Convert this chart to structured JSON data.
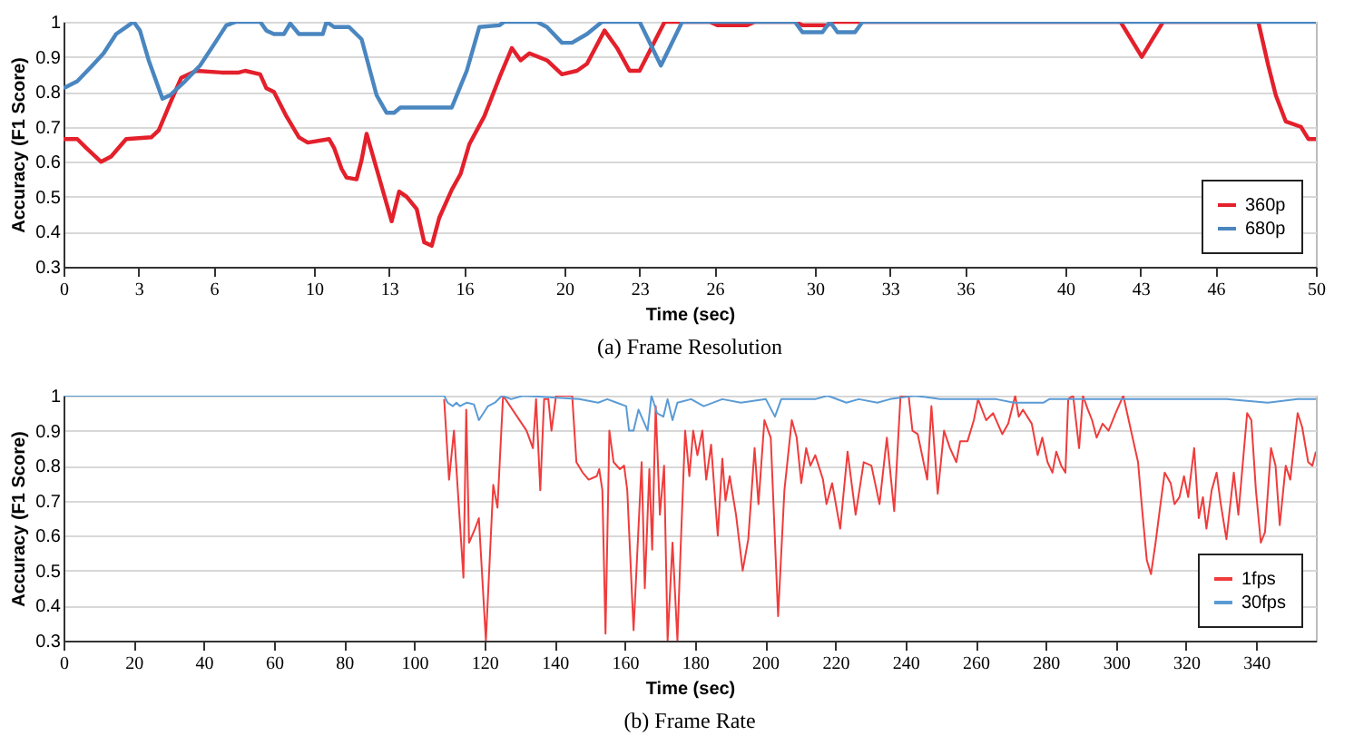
{
  "chart_data": [
    {
      "type": "line",
      "title": "(a) Frame Resolution",
      "xlabel": "Time (sec)",
      "ylabel": "Accuracy (F1 Score)",
      "xlim": [
        0,
        50
      ],
      "ylim": [
        0.3,
        1
      ],
      "xticks": [
        0,
        3,
        6,
        10,
        13,
        16,
        20,
        23,
        26,
        30,
        33,
        36,
        40,
        43,
        46,
        50
      ],
      "yticks": [
        0.3,
        0.4,
        0.5,
        0.6,
        0.7,
        0.8,
        0.9,
        1
      ],
      "grid": "y",
      "legend": "bottom right",
      "series": [
        {
          "name": "360p",
          "color": "#e3202b",
          "x": [
            0,
            0.55,
            0.9,
            1.5,
            1.9,
            2.5,
            3.5,
            3.8,
            4.3,
            4.7,
            5.3,
            6.3,
            7,
            7.25,
            7.85,
            8.1,
            8.4,
            8.9,
            9.4,
            9.75,
            10.6,
            10.8,
            11.1,
            11.3,
            11.7,
            11.9,
            12.1,
            12.5,
            13.1,
            13.4,
            13.7,
            14.1,
            14.4,
            14.7,
            15,
            15.5,
            15.85,
            16.2,
            16.8,
            17.4,
            17.9,
            18.25,
            18.6,
            19.3,
            19.9,
            20.5,
            20.9,
            21.6,
            22.1,
            22.6,
            23,
            24,
            25.8,
            26.1,
            27.3,
            27.6,
            29.2,
            29.5,
            30.5,
            30.7,
            42.2,
            43.05,
            43.9,
            47.7,
            48.1,
            48.4,
            48.8,
            49.4,
            49.7,
            50
          ],
          "values": [
            0.665,
            0.665,
            0.64,
            0.6,
            0.615,
            0.665,
            0.67,
            0.69,
            0.775,
            0.84,
            0.86,
            0.855,
            0.855,
            0.86,
            0.85,
            0.81,
            0.8,
            0.73,
            0.67,
            0.655,
            0.665,
            0.64,
            0.58,
            0.555,
            0.55,
            0.605,
            0.68,
            0.58,
            0.43,
            0.515,
            0.5,
            0.465,
            0.37,
            0.36,
            0.44,
            0.52,
            0.565,
            0.65,
            0.73,
            0.84,
            0.925,
            0.89,
            0.91,
            0.89,
            0.85,
            0.86,
            0.88,
            0.975,
            0.925,
            0.86,
            0.86,
            1,
            1,
            0.99,
            0.99,
            1,
            1,
            0.99,
            0.99,
            1,
            1,
            0.9,
            1,
            1,
            0.875,
            0.79,
            0.715,
            0.7,
            0.665,
            0.665
          ]
        },
        {
          "name": "680p",
          "color": "#4a86c0",
          "x": [
            0,
            0.55,
            1.15,
            1.6,
            2.1,
            2.6,
            2.8,
            3.05,
            3.4,
            3.95,
            4.25,
            4.85,
            5.45,
            6.05,
            6.5,
            6.9,
            7.85,
            8.1,
            8.4,
            8.8,
            9.05,
            9.4,
            10.35,
            10.5,
            10.8,
            11.4,
            11.9,
            12.5,
            12.9,
            13.2,
            13.45,
            15.5,
            16.1,
            16.6,
            17.4,
            17.6,
            18.9,
            19.3,
            19.9,
            20.3,
            20.9,
            21.5,
            23,
            23.85,
            24.7,
            29.2,
            29.5,
            30.3,
            30.6,
            30.9,
            31.6,
            31.9,
            50
          ],
          "values": [
            0.81,
            0.83,
            0.875,
            0.91,
            0.965,
            0.99,
            1,
            0.975,
            0.89,
            0.78,
            0.79,
            0.83,
            0.875,
            0.94,
            0.99,
            1,
            1,
            0.975,
            0.965,
            0.965,
            0.995,
            0.965,
            0.965,
            1,
            0.985,
            0.985,
            0.95,
            0.79,
            0.74,
            0.74,
            0.755,
            0.755,
            0.86,
            0.985,
            0.99,
            1,
            1,
            0.985,
            0.94,
            0.94,
            0.965,
            1,
            1,
            0.875,
            1,
            1,
            0.97,
            0.97,
            1,
            0.97,
            0.97,
            1,
            1
          ]
        }
      ]
    },
    {
      "type": "line",
      "title": "(b) Frame Rate",
      "xlabel": "Time (sec)",
      "ylabel": "Accuracy (F1 Score)",
      "xlim": [
        0,
        357
      ],
      "ylim": [
        0.3,
        1
      ],
      "xticks": [
        0,
        20,
        40,
        60,
        80,
        100,
        120,
        140,
        160,
        180,
        200,
        220,
        240,
        260,
        280,
        300,
        320,
        340
      ],
      "yticks": [
        0.3,
        0.4,
        0.5,
        0.6,
        0.7,
        0.8,
        0.9,
        1
      ],
      "grid": "y",
      "legend": "bottom right",
      "series": [
        {
          "name": "1fps",
          "color": "#f03c3c",
          "x": [
            108.5,
            109.9,
            111.3,
            114,
            114.8,
            115.6,
            117.3,
            118.4,
            120.4,
            122.5,
            123.7,
            125.3,
            132,
            133.8,
            134.7,
            135.9,
            137,
            138.2,
            139.1,
            140.4,
            145,
            146.2,
            148,
            149.7,
            152,
            152.7,
            153.6,
            154.5,
            155.6,
            156.8,
            158.6,
            159.8,
            160.7,
            162.5,
            163.6,
            164.8,
            165.7,
            167,
            167.8,
            168.8,
            170,
            171.2,
            172.2,
            173.6,
            175,
            175.9,
            177.2,
            178.4,
            179.5,
            180.7,
            182.1,
            183.2,
            184.6,
            186.5,
            187.8,
            188.7,
            189.9,
            191.7,
            193.6,
            195.2,
            197,
            198.1,
            199.8,
            201.6,
            203.7,
            205.5,
            207.6,
            209,
            210.3,
            211.7,
            212.9,
            214.3,
            216.5,
            217.5,
            219.1,
            221.4,
            223.5,
            225.8,
            228.1,
            230.3,
            232.6,
            234.7,
            236.8,
            238.6,
            240.9,
            242,
            243.5,
            246.2,
            247.4,
            249.2,
            251,
            252.7,
            254.5,
            255.6,
            257.7,
            259.5,
            260.7,
            263,
            265,
            267.6,
            269.3,
            271.3,
            272.3,
            273.5,
            276,
            277.7,
            279,
            280.5,
            281.9,
            283,
            284.4,
            285.6,
            286.4,
            287.8,
            289.5,
            290.6,
            292,
            293.2,
            294.5,
            296.2,
            297.9,
            299.9,
            302.1,
            304.3,
            306.3,
            307.6,
            308.8,
            310,
            311.3,
            312.7,
            313.9,
            315.6,
            316.7,
            318.1,
            319.4,
            320.6,
            322.3,
            323.6,
            324.8,
            325.8,
            327.3,
            328.7,
            329.9,
            331.5,
            333.6,
            334.9,
            337.4,
            338.6,
            339.9,
            341.3,
            342.5,
            344.2,
            345.5,
            346.7,
            348.4,
            349.7,
            351.8,
            353.1,
            354.8,
            356,
            357
          ],
          "values": [
            0.99,
            0.76,
            0.9,
            0.48,
            0.96,
            0.58,
            0.62,
            0.65,
            0.3,
            0.745,
            0.68,
            1,
            0.9,
            0.85,
            0.99,
            0.73,
            0.99,
            0.99,
            0.9,
            1,
            1,
            0.81,
            0.78,
            0.76,
            0.77,
            0.79,
            0.73,
            0.32,
            0.9,
            0.81,
            0.79,
            0.8,
            0.73,
            0.33,
            0.56,
            0.81,
            0.45,
            0.79,
            0.56,
            0.97,
            0.66,
            0.8,
            0.3,
            0.58,
            0.3,
            0.56,
            0.9,
            0.77,
            0.9,
            0.83,
            0.9,
            0.76,
            0.86,
            0.6,
            0.82,
            0.7,
            0.77,
            0.66,
            0.5,
            0.59,
            0.85,
            0.69,
            0.93,
            0.88,
            0.37,
            0.73,
            0.93,
            0.88,
            0.75,
            0.85,
            0.8,
            0.83,
            0.76,
            0.69,
            0.75,
            0.62,
            0.84,
            0.66,
            0.81,
            0.8,
            0.69,
            0.88,
            0.67,
            1,
            1,
            0.9,
            0.89,
            0.76,
            0.97,
            0.72,
            0.9,
            0.85,
            0.81,
            0.87,
            0.87,
            0.93,
            0.99,
            0.93,
            0.95,
            0.89,
            0.92,
            1,
            0.94,
            0.96,
            0.92,
            0.83,
            0.88,
            0.81,
            0.78,
            0.84,
            0.8,
            0.78,
            0.99,
            1,
            0.85,
            1,
            0.96,
            0.93,
            0.88,
            0.92,
            0.9,
            0.95,
            1,
            0.9,
            0.81,
            0.66,
            0.53,
            0.49,
            0.58,
            0.69,
            0.78,
            0.75,
            0.69,
            0.71,
            0.77,
            0.71,
            0.85,
            0.65,
            0.71,
            0.62,
            0.73,
            0.78,
            0.69,
            0.59,
            0.78,
            0.66,
            0.95,
            0.93,
            0.73,
            0.58,
            0.61,
            0.85,
            0.8,
            0.63,
            0.8,
            0.76,
            0.95,
            0.91,
            0.81,
            0.8,
            0.84
          ]
        },
        {
          "name": "30fps",
          "color": "#5b9bd5",
          "x": [
            0,
            108.5,
            109.5,
            111,
            112,
            113,
            115,
            117,
            118.4,
            121,
            123,
            125,
            127.6,
            131,
            147,
            152.4,
            155,
            157.7,
            160.4,
            161.2,
            162.5,
            163.9,
            166.5,
            167.6,
            169.2,
            171,
            172.2,
            173.6,
            175,
            178.9,
            182.5,
            187.8,
            193.1,
            200.2,
            202.8,
            204.6,
            214.3,
            217.8,
            223.2,
            226.7,
            232,
            235.6,
            242.7,
            249.8,
            256.8,
            265.9,
            270.9,
            279.4,
            281,
            287.8,
            301.2,
            309.7,
            321.4,
            331.5,
            343.3,
            351.8,
            357
          ],
          "values": [
            1,
            1,
            0.98,
            0.97,
            0.98,
            0.97,
            0.98,
            0.975,
            0.93,
            0.97,
            0.98,
            1,
            0.99,
            1,
            0.99,
            0.98,
            0.99,
            0.98,
            0.97,
            0.9,
            0.9,
            0.96,
            0.9,
            1,
            0.95,
            0.94,
            0.99,
            0.93,
            0.98,
            0.99,
            0.97,
            0.99,
            0.98,
            0.99,
            0.94,
            0.99,
            0.99,
            1,
            0.98,
            0.99,
            0.98,
            0.99,
            1,
            0.99,
            0.99,
            0.99,
            0.98,
            0.98,
            0.99,
            0.99,
            0.99,
            0.99,
            0.99,
            0.99,
            0.98,
            0.99,
            0.99
          ]
        }
      ]
    }
  ]
}
